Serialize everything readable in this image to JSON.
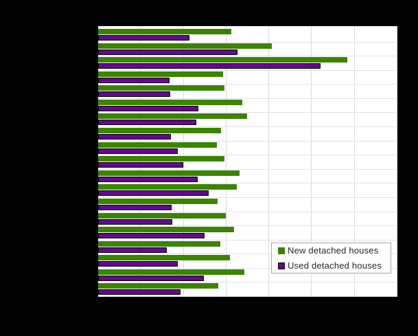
{
  "page": {
    "background": "#000000"
  },
  "plot": {
    "background": "#ffffff",
    "vertical_gridline_color": "#d9d9d9",
    "row_separator_color": "#e0e0e0"
  },
  "legend": {
    "position": "bottom-right-inside-plot",
    "background": "#ffffff",
    "border_color": "#a6a6a6",
    "items": [
      {
        "label": "New detached houses",
        "color": "#3d8206",
        "swatch_border": "#3d8206"
      },
      {
        "label": "Used detached houses",
        "color": "#600d87",
        "swatch_border": "#000000"
      }
    ]
  },
  "chart_data": {
    "type": "bar",
    "orientation": "horizontal",
    "title": "",
    "title_visible": false,
    "n_rows": 19,
    "categories": [],
    "category_axis_labels_visible": false,
    "value_axis": {
      "min": 0,
      "max": 7,
      "gridline_interval": 1,
      "tick_labels_visible": false
    },
    "grid": "both",
    "legend_position": "bottom-right",
    "series": [
      {
        "name": "New detached houses",
        "color": "#3d8206",
        "values": [
          3.12,
          4.06,
          5.82,
          2.92,
          2.95,
          3.37,
          3.48,
          2.88,
          2.78,
          2.95,
          3.3,
          3.24,
          2.79,
          2.99,
          3.18,
          2.86,
          3.09,
          3.42,
          2.81
        ]
      },
      {
        "name": "Used detached houses",
        "color": "#600d87",
        "values": [
          2.13,
          3.26,
          5.2,
          1.67,
          1.69,
          2.34,
          2.3,
          1.7,
          1.87,
          1.99,
          2.32,
          2.58,
          1.71,
          1.74,
          2.49,
          1.61,
          1.86,
          2.48,
          1.92
        ]
      }
    ]
  }
}
